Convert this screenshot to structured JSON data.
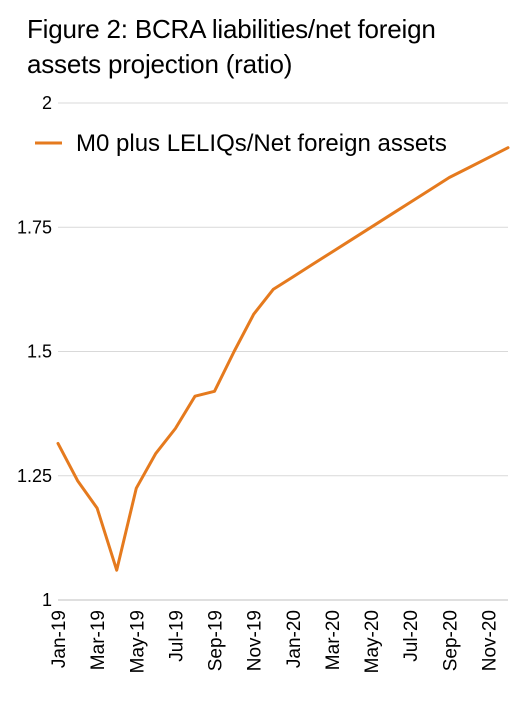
{
  "chart_data": {
    "type": "line",
    "title": "Figure 2: BCRA liabilities/net foreign assets projection (ratio)",
    "xlabel": "",
    "ylabel": "",
    "ylim": [
      1,
      2
    ],
    "yticks": [
      "1",
      "1.25",
      "1.5",
      "1.75",
      "2"
    ],
    "grid": true,
    "legend_placement": "top",
    "x_tick_labels": [
      "Jan-19",
      "Mar-19",
      "May-19",
      "Jul-19",
      "Sep-19",
      "Nov-19",
      "Jan-20",
      "Mar-20",
      "May-20",
      "Jul-20",
      "Sep-20",
      "Nov-20"
    ],
    "x": [
      "Jan-19",
      "Feb-19",
      "Mar-19",
      "Apr-19",
      "May-19",
      "Jun-19",
      "Jul-19",
      "Aug-19",
      "Sep-19",
      "Oct-19",
      "Nov-19",
      "Dec-19",
      "Jan-20",
      "Feb-20",
      "Mar-20",
      "Apr-20",
      "May-20",
      "Jun-20",
      "Jul-20",
      "Aug-20",
      "Sep-20",
      "Oct-20",
      "Nov-20",
      "Dec-20"
    ],
    "series": [
      {
        "name": "M0 plus LELIQs/Net foreign assets",
        "color": "#E57A1E",
        "values": [
          1.315,
          1.24,
          1.185,
          1.06,
          1.225,
          1.295,
          1.345,
          1.41,
          1.42,
          1.5,
          1.575,
          1.625,
          1.65,
          1.675,
          1.7,
          1.725,
          1.75,
          1.775,
          1.8,
          1.825,
          1.85,
          1.87,
          1.89,
          1.91
        ]
      }
    ]
  }
}
